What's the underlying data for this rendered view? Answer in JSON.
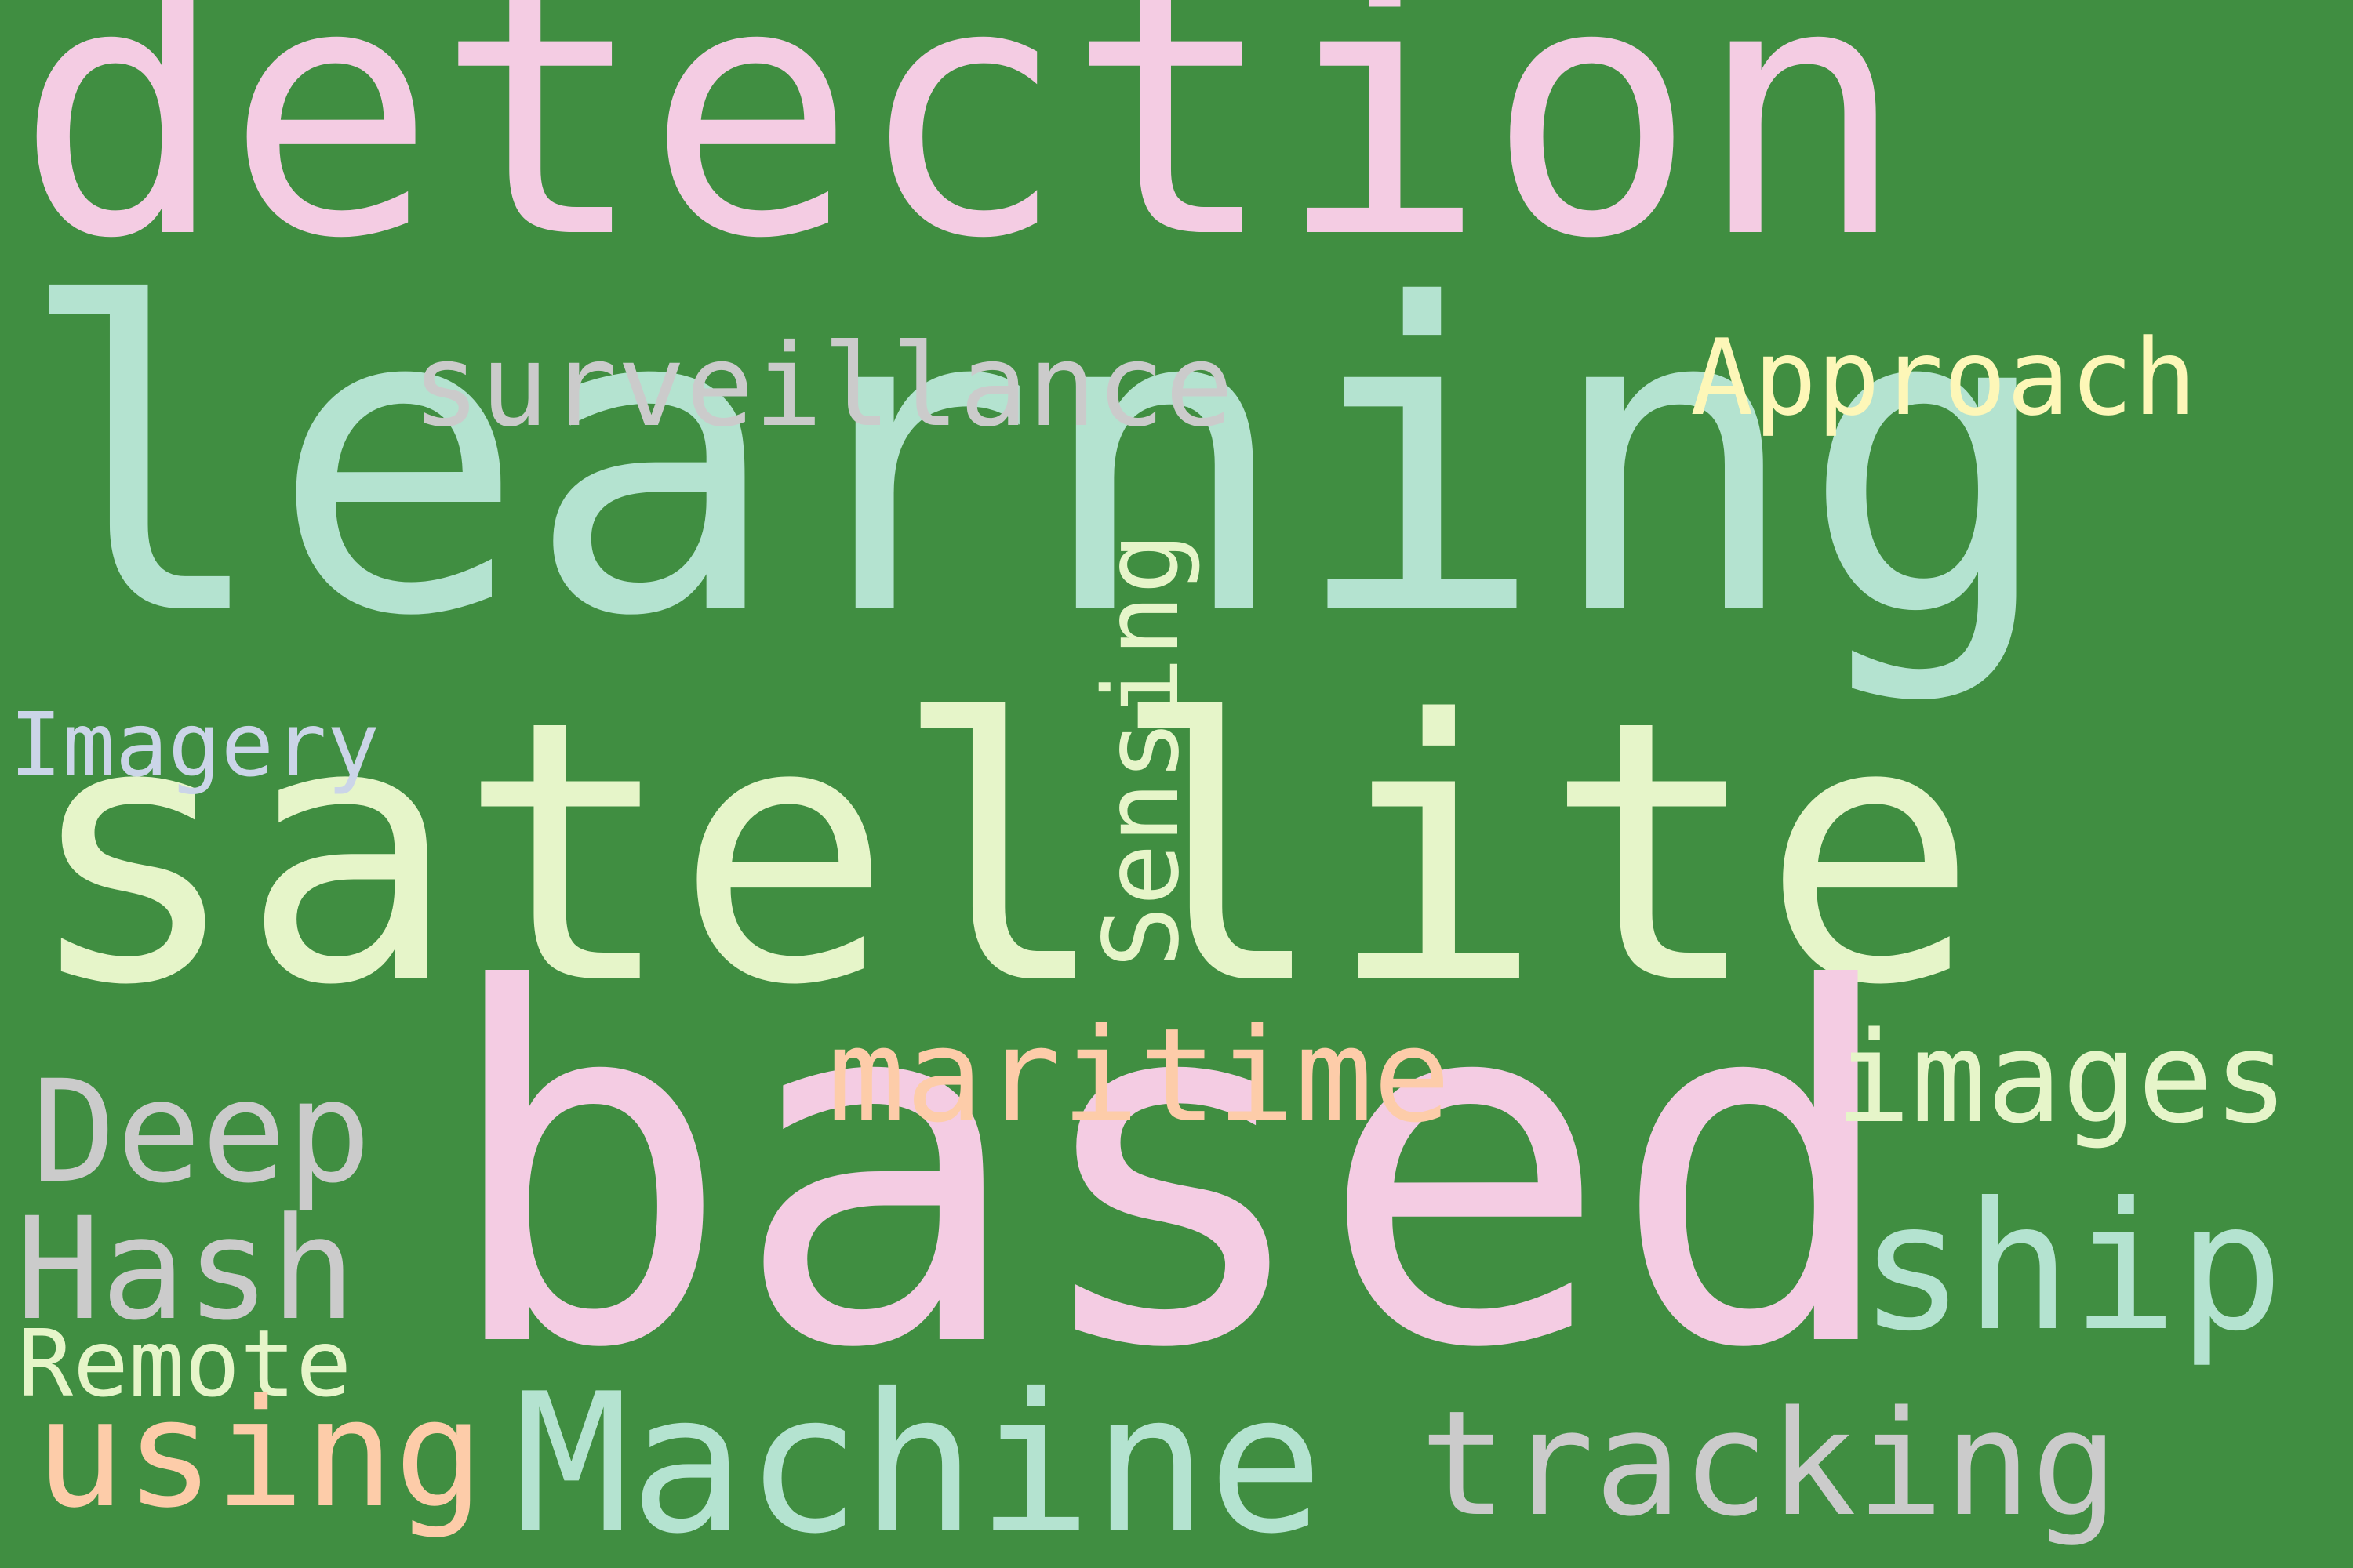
{
  "background_color": "#408e41",
  "colors": {
    "pink": "#f4cce3",
    "mint": "#b4e3d0",
    "cream": "#e6f5c9",
    "grey": "#cbcbcb",
    "yellow": "#fdf7b8",
    "peach": "#fdcca9",
    "lavender": "#cbd5e8"
  },
  "words": [
    {
      "text": "detection",
      "color": "pink"
    },
    {
      "text": "learning",
      "color": "mint"
    },
    {
      "text": "satellite",
      "color": "cream"
    },
    {
      "text": "based",
      "color": "pink"
    },
    {
      "text": "surveillance",
      "color": "grey"
    },
    {
      "text": "Approach",
      "color": "yellow"
    },
    {
      "text": "Sensing",
      "color": "cream"
    },
    {
      "text": "Imagery",
      "color": "lavender"
    },
    {
      "text": "maritime",
      "color": "peach"
    },
    {
      "text": "images",
      "color": "cream"
    },
    {
      "text": "Deep",
      "color": "grey"
    },
    {
      "text": "Hash",
      "color": "grey"
    },
    {
      "text": "ship",
      "color": "mint"
    },
    {
      "text": "Remote",
      "color": "cream"
    },
    {
      "text": "using",
      "color": "peach"
    },
    {
      "text": "Machine",
      "color": "mint"
    },
    {
      "text": "tracking",
      "color": "grey"
    }
  ]
}
